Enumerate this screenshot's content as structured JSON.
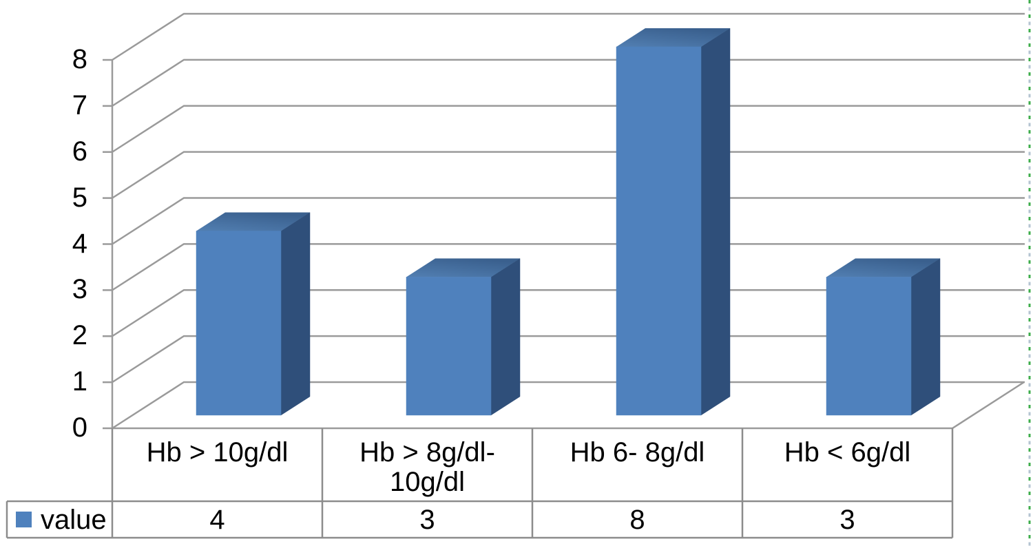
{
  "chart_data": {
    "type": "bar",
    "projection": "3d-column",
    "title": "",
    "xlabel": "",
    "ylabel": "",
    "categories": [
      "Hb > 10g/dl",
      "Hb > 8g/dl-10g/dl",
      "Hb 6- 8g/dl",
      "Hb < 6g/dl"
    ],
    "series": [
      {
        "name": "value",
        "values": [
          4,
          3,
          8,
          3
        ],
        "color": "#4F81BD"
      }
    ],
    "ylim": [
      0,
      8
    ],
    "yticks": [
      0,
      1,
      2,
      3,
      4,
      5,
      6,
      7,
      8
    ],
    "grid": true,
    "legend_position": "bottom-left",
    "data_table_shown": true
  },
  "legend": {
    "label": "value",
    "swatch_color": "#4F81BD"
  },
  "colors": {
    "background": "#FFFFFF",
    "bar_front": "#4F81BD",
    "bar_side": "#2F4F7A",
    "bar_top_dark": "#3A608E",
    "bar_top_light": "#527FB2",
    "gridline": "#9A9A9A",
    "axis_line": "#9A9A9A",
    "table_border": "#8C8C8C",
    "text": "#000000",
    "page_break_green": "#3FAE4C",
    "page_break_gray": "#B5C4D2"
  }
}
